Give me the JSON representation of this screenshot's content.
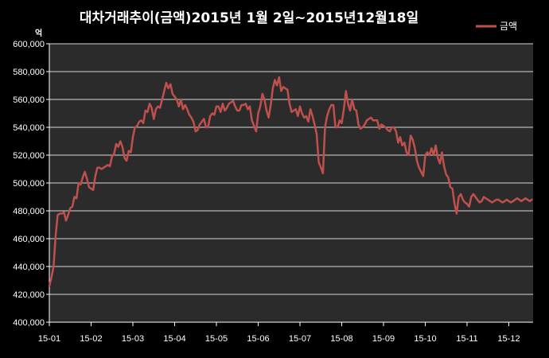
{
  "chart_data": {
    "type": "line",
    "title": "대차거래추이(금액)2015년 1월 2일~2015년12월18일",
    "ylabel": "억",
    "xlabel": "",
    "ylim": [
      400000,
      600000
    ],
    "y_ticks": [
      "400,000",
      "420,000",
      "440,000",
      "460,000",
      "480,000",
      "500,000",
      "520,000",
      "540,000",
      "560,000",
      "580,000",
      "600,000"
    ],
    "x_ticks": [
      "15-01",
      "15-02",
      "15-03",
      "15-04",
      "15-05",
      "15-06",
      "15-07",
      "15-08",
      "15-09",
      "15-10",
      "15-11",
      "15-12"
    ],
    "grid": true,
    "legend": "top-right",
    "series": [
      {
        "name": "금액",
        "color": "#c0504d",
        "x": [
          0,
          0.05,
          0.1,
          0.15,
          0.2,
          0.25,
          0.3,
          0.35,
          0.4,
          0.45,
          0.5,
          0.55,
          0.6,
          0.65,
          0.7,
          0.75,
          0.8,
          0.85,
          0.9,
          0.95,
          1.0,
          1.05,
          1.1,
          1.15,
          1.2,
          1.25,
          1.3,
          1.35,
          1.4,
          1.45,
          1.5,
          1.55,
          1.6,
          1.65,
          1.7,
          1.75,
          1.8,
          1.85,
          1.9,
          1.95,
          2.0,
          2.05,
          2.1,
          2.15,
          2.2,
          2.25,
          2.3,
          2.35,
          2.4,
          2.45,
          2.5,
          2.55,
          2.6,
          2.65,
          2.7,
          2.75,
          2.8,
          2.85,
          2.9,
          2.95,
          3.0,
          3.05,
          3.1,
          3.15,
          3.2,
          3.25,
          3.3,
          3.35,
          3.4,
          3.45,
          3.5,
          3.55,
          3.6,
          3.65,
          3.7,
          3.75,
          3.8,
          3.85,
          3.9,
          3.95,
          4.0,
          4.05,
          4.1,
          4.15,
          4.2,
          4.25,
          4.3,
          4.35,
          4.4,
          4.45,
          4.5,
          4.55,
          4.6,
          4.65,
          4.7,
          4.75,
          4.8,
          4.85,
          4.9,
          4.95,
          5.0,
          5.05,
          5.1,
          5.15,
          5.2,
          5.25,
          5.3,
          5.35,
          5.4,
          5.45,
          5.5,
          5.55,
          5.6,
          5.65,
          5.7,
          5.75,
          5.8,
          5.85,
          5.9,
          5.95,
          6.0,
          6.05,
          6.1,
          6.15,
          6.2,
          6.25,
          6.3,
          6.35,
          6.4,
          6.45,
          6.5,
          6.55,
          6.6,
          6.65,
          6.7,
          6.75,
          6.8,
          6.85,
          6.9,
          6.95,
          7.0,
          7.05,
          7.1,
          7.15,
          7.2,
          7.25,
          7.3,
          7.35,
          7.4,
          7.45,
          7.5,
          7.55,
          7.6,
          7.65,
          7.7,
          7.75,
          7.8,
          7.85,
          7.9,
          7.95,
          8.0,
          8.05,
          8.1,
          8.15,
          8.2,
          8.25,
          8.3,
          8.35,
          8.4,
          8.45,
          8.5,
          8.55,
          8.6,
          8.65,
          8.7,
          8.75,
          8.8,
          8.85,
          8.9,
          8.95,
          9.0,
          9.05,
          9.1,
          9.15,
          9.2,
          9.25,
          9.3,
          9.35,
          9.4,
          9.45,
          9.5,
          9.55,
          9.6,
          9.65,
          9.7,
          9.75,
          9.8,
          9.85,
          9.9,
          9.95,
          10.0,
          10.05,
          10.1,
          10.15,
          10.2,
          10.25,
          10.3,
          10.35,
          10.4,
          10.45,
          10.5,
          10.55,
          10.6,
          10.65,
          10.7,
          10.75,
          10.8,
          10.85,
          10.9,
          10.95,
          11.0,
          11.05,
          11.1,
          11.15,
          11.2,
          11.25,
          11.3,
          11.35,
          11.4,
          11.45,
          11.5,
          11.55
        ],
        "values": [
          426000,
          432000,
          440000,
          462000,
          477000,
          478000,
          478000,
          479000,
          473000,
          477000,
          482000,
          483000,
          490000,
          489000,
          500000,
          499000,
          504000,
          508000,
          503000,
          497000,
          496000,
          495000,
          505000,
          511000,
          511000,
          510000,
          511000,
          512000,
          513000,
          512000,
          519000,
          521000,
          528000,
          526000,
          530000,
          526000,
          518000,
          516000,
          523000,
          522000,
          533000,
          540000,
          541000,
          544000,
          545000,
          543000,
          552000,
          551000,
          557000,
          554000,
          546000,
          553000,
          555000,
          554000,
          560000,
          566000,
          572000,
          568000,
          571000,
          564000,
          562000,
          560000,
          555000,
          560000,
          553000,
          556000,
          553000,
          549000,
          547000,
          544000,
          537000,
          538000,
          542000,
          544000,
          546000,
          540000,
          540000,
          548000,
          550000,
          549000,
          555000,
          555000,
          551000,
          557000,
          552000,
          554000,
          557000,
          558000,
          559000,
          555000,
          552000,
          552000,
          556000,
          556000,
          557000,
          553000,
          555000,
          545000,
          541000,
          537000,
          550000,
          555000,
          564000,
          560000,
          552000,
          547000,
          556000,
          568000,
          574000,
          570000,
          576000,
          566000,
          569000,
          568000,
          567000,
          557000,
          551000,
          552000,
          553000,
          548000,
          555000,
          550000,
          547000,
          548000,
          544000,
          553000,
          548000,
          542000,
          535000,
          515000,
          511000,
          507000,
          540000,
          548000,
          553000,
          556000,
          556000,
          540000,
          540000,
          545000,
          543000,
          553000,
          566000,
          557000,
          552000,
          560000,
          553000,
          552000,
          542000,
          539000,
          540000,
          542000,
          545000,
          546000,
          547000,
          545000,
          545000,
          545000,
          539000,
          542000,
          541000,
          540000,
          538000,
          537000,
          540000,
          540000,
          537000,
          529000,
          533000,
          527000,
          529000,
          522000,
          520000,
          534000,
          531000,
          525000,
          516000,
          511000,
          508000,
          505000,
          520000,
          522000,
          520000,
          525000,
          520000,
          527000,
          518000,
          514000,
          522000,
          512000,
          506000,
          504000,
          497000,
          496000,
          485000,
          478000,
          490000,
          492000,
          488000,
          486000,
          485000,
          483000,
          490000,
          492000,
          490000,
          488000,
          486000,
          487000,
          490000,
          489000,
          488000,
          487000,
          486000,
          487000,
          488000,
          488000,
          487000,
          486000,
          487000,
          488000,
          487000,
          486000,
          487000,
          488000,
          489000,
          488000,
          487000,
          488000,
          489000,
          488000,
          487000,
          488000
        ]
      }
    ]
  }
}
